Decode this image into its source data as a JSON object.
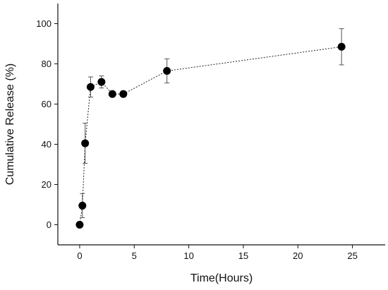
{
  "chart_data": {
    "type": "scatter",
    "title": "",
    "xlabel": "Time(Hours)",
    "ylabel": "Cumulative Release (%)",
    "xlim": [
      -2,
      28
    ],
    "ylim": [
      -10,
      110
    ],
    "xticks": [
      0,
      5,
      10,
      15,
      20,
      25
    ],
    "yticks": [
      0,
      20,
      40,
      60,
      80,
      100
    ],
    "grid": false,
    "legend": "none",
    "series": [
      {
        "line_style": "dotted",
        "color": "#000000",
        "points": [
          {
            "x": 0,
            "y": 0,
            "err": 0
          },
          {
            "x": 0.25,
            "y": 9.5,
            "err": 6
          },
          {
            "x": 0.5,
            "y": 40.5,
            "err": 10
          },
          {
            "x": 1,
            "y": 68.5,
            "err": 5
          },
          {
            "x": 2,
            "y": 71,
            "err": 3
          },
          {
            "x": 3,
            "y": 65,
            "err": 1
          },
          {
            "x": 4,
            "y": 65,
            "err": 1.5
          },
          {
            "x": 8,
            "y": 76.5,
            "err": 6
          },
          {
            "x": 24,
            "y": 88.5,
            "err": 9
          }
        ]
      }
    ]
  }
}
